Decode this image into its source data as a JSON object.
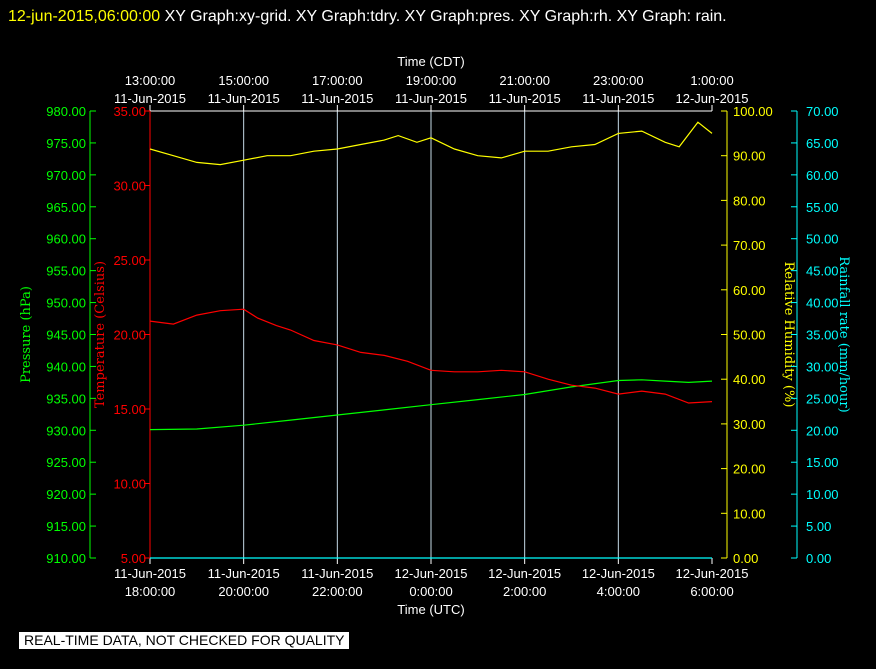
{
  "header": {
    "timestamp": "12-jun-2015,06:00:00",
    "graphs": " XY Graph:xy-grid.  XY Graph:tdry.  XY Graph:pres.  XY Graph:rh.  XY Graph: rain."
  },
  "notice": "REAL-TIME DATA, NOT CHECKED FOR QUALITY",
  "colors": {
    "pressure": "#00ff00",
    "temperature": "#ff0000",
    "humidity": "#ffff00",
    "rainfall": "#00ffff",
    "grid": "#c6dbe8",
    "frame": "#ffffff"
  },
  "chart_data": {
    "type": "line",
    "x_top": {
      "label": "Time (CDT)",
      "ticks": [
        {
          "time": "13:00:00",
          "date": "11-Jun-2015"
        },
        {
          "time": "15:00:00",
          "date": "11-Jun-2015"
        },
        {
          "time": "17:00:00",
          "date": "11-Jun-2015"
        },
        {
          "time": "19:00:00",
          "date": "11-Jun-2015"
        },
        {
          "time": "21:00:00",
          "date": "11-Jun-2015"
        },
        {
          "time": "23:00:00",
          "date": "11-Jun-2015"
        },
        {
          "time": "1:00:00",
          "date": "12-Jun-2015"
        }
      ]
    },
    "x_bottom": {
      "label": "Time (UTC)",
      "ticks": [
        {
          "date": "11-Jun-2015",
          "time": "18:00:00"
        },
        {
          "date": "11-Jun-2015",
          "time": "20:00:00"
        },
        {
          "date": "11-Jun-2015",
          "time": "22:00:00"
        },
        {
          "date": "12-Jun-2015",
          "time": "0:00:00"
        },
        {
          "date": "12-Jun-2015",
          "time": "2:00:00"
        },
        {
          "date": "12-Jun-2015",
          "time": "4:00:00"
        },
        {
          "date": "12-Jun-2015",
          "time": "6:00:00"
        }
      ],
      "range_utc_hours": [
        18,
        30
      ],
      "grid": true
    },
    "axes": {
      "pressure": {
        "label": "Pressure (hPa)",
        "range": [
          910,
          980
        ],
        "step": 5,
        "decimals": 2
      },
      "temperature": {
        "label": "Temperature (Celsius)",
        "range": [
          5,
          35
        ],
        "step": 5,
        "decimals": 2
      },
      "humidity": {
        "label": "Relative Humidity (%)",
        "range": [
          0,
          100
        ],
        "step": 10,
        "decimals": 2
      },
      "rainfall": {
        "label": "Rainfall rate (mm/hour)",
        "range": [
          0,
          70
        ],
        "step": 5,
        "decimals": 2
      }
    },
    "series": [
      {
        "axis": "pressure",
        "x": [
          18,
          19,
          20,
          21,
          22,
          23,
          24,
          25,
          26,
          27,
          28,
          28.5,
          29,
          29.5,
          30
        ],
        "y": [
          930.1,
          930.2,
          930.8,
          931.6,
          932.4,
          933.2,
          934.0,
          934.8,
          935.6,
          936.8,
          937.8,
          937.9,
          937.7,
          937.5,
          937.7
        ]
      },
      {
        "axis": "temperature",
        "x": [
          18,
          18.5,
          19,
          19.5,
          20,
          20.3,
          20.7,
          21,
          21.5,
          22,
          22.5,
          23,
          23.5,
          24,
          24.5,
          25,
          25.5,
          26,
          26.5,
          27,
          27.5,
          28,
          28.5,
          29,
          29.5,
          30
        ],
        "y": [
          20.9,
          20.7,
          21.3,
          21.6,
          21.7,
          21.1,
          20.6,
          20.3,
          19.6,
          19.3,
          18.8,
          18.6,
          18.2,
          17.6,
          17.5,
          17.5,
          17.6,
          17.5,
          17.0,
          16.6,
          16.4,
          16.0,
          16.2,
          16.0,
          15.4,
          15.5
        ]
      },
      {
        "axis": "humidity",
        "x": [
          18,
          18.5,
          19,
          19.5,
          20,
          20.5,
          21,
          21.5,
          22,
          22.5,
          23,
          23.3,
          23.7,
          24,
          24.5,
          25,
          25.5,
          26,
          26.5,
          27,
          27.5,
          28,
          28.5,
          29,
          29.3,
          29.7,
          30
        ],
        "y": [
          91.5,
          90.0,
          88.5,
          88.0,
          89.0,
          90.0,
          90.0,
          91.0,
          91.5,
          92.5,
          93.5,
          94.5,
          93.0,
          94.0,
          91.5,
          90.0,
          89.5,
          91.0,
          91.0,
          92.0,
          92.5,
          95.0,
          95.5,
          93.0,
          92.0,
          97.5,
          95.0
        ]
      },
      {
        "axis": "rainfall",
        "x": [
          18,
          30
        ],
        "y": [
          0.0,
          0.0
        ]
      }
    ]
  }
}
